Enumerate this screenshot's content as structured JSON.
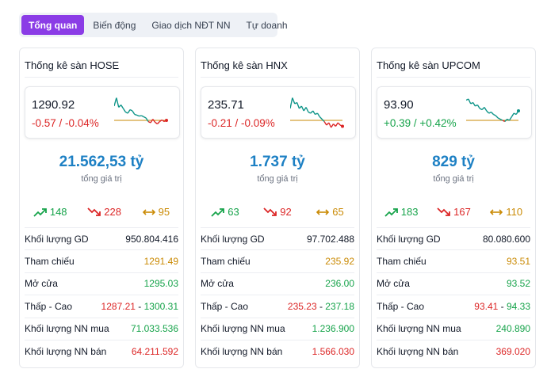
{
  "tabs": [
    "Tổng quan",
    "Biến động",
    "Giao dịch NĐT NN",
    "Tự doanh"
  ],
  "total_label": "tổng giá trị",
  "labels": {
    "volume": "Khối lượng GD",
    "ref": "Tham chiếu",
    "open": "Mở cửa",
    "lowhigh": "Thấp - Cao",
    "nn_buy": "Khối lượng NN mua",
    "nn_sell": "Khối lượng NN bán"
  },
  "colors": {
    "up": "#16a34a",
    "down": "#dc2626",
    "ref": "#ca8a04",
    "accent": "#8b3ce6",
    "total": "#1d80c4"
  },
  "cards": [
    {
      "title": "Thống kê sàn HOSE",
      "price": "1290.92",
      "change": "-0.57 / -0.04%",
      "direction": "down",
      "total": "21.562,53 tỷ",
      "advances": "148",
      "declines": "228",
      "unchanged": "95",
      "volume": "950.804.416",
      "ref": "1291.49",
      "open": "1295.03",
      "low": "1287.21",
      "high": "1300.31",
      "nn_buy": "71.033.536",
      "nn_sell": "64.211.592",
      "spark": [
        0.6,
        0.95,
        0.55,
        0.65,
        0.5,
        0.35,
        0.3,
        0.45,
        0.4,
        0.25,
        0.22,
        0.18,
        0.2,
        0.15,
        0.1,
        -0.05,
        -0.1,
        0.05,
        -0.08,
        -0.15,
        -0.05,
        0.02,
        -0.05,
        0.0
      ]
    },
    {
      "title": "Thống kê sàn HNX",
      "price": "235.71",
      "change": "-0.21 / -0.09%",
      "direction": "down",
      "total": "1.737 tỷ",
      "advances": "63",
      "declines": "92",
      "unchanged": "65",
      "volume": "97.702.488",
      "ref": "235.92",
      "open": "236.00",
      "low": "235.23",
      "high": "237.18",
      "nn_buy": "1.236.900",
      "nn_sell": "1.566.030",
      "spark": [
        0.5,
        0.95,
        0.7,
        0.75,
        0.5,
        0.6,
        0.4,
        0.55,
        0.35,
        0.3,
        0.4,
        0.25,
        0.3,
        0.15,
        0.05,
        -0.05,
        -0.2,
        -0.1,
        -0.3,
        -0.15,
        -0.25,
        -0.1,
        -0.2,
        -0.25
      ]
    },
    {
      "title": "Thống kê sàn UPCOM",
      "price": "93.90",
      "change": "+0.39 / +0.42%",
      "direction": "up",
      "total": "829 tỷ",
      "advances": "183",
      "declines": "167",
      "unchanged": "110",
      "volume": "80.080.600",
      "ref": "93.51",
      "open": "93.52",
      "low": "93.41",
      "high": "94.33",
      "nn_buy": "240.890",
      "nn_sell": "369.020",
      "spark": [
        0.85,
        0.9,
        0.7,
        0.75,
        0.6,
        0.65,
        0.5,
        0.45,
        0.55,
        0.4,
        0.3,
        0.35,
        0.25,
        0.2,
        0.1,
        0.05,
        0.0,
        -0.05,
        0.05,
        0.0,
        0.15,
        0.3,
        0.25,
        0.4
      ]
    }
  ]
}
